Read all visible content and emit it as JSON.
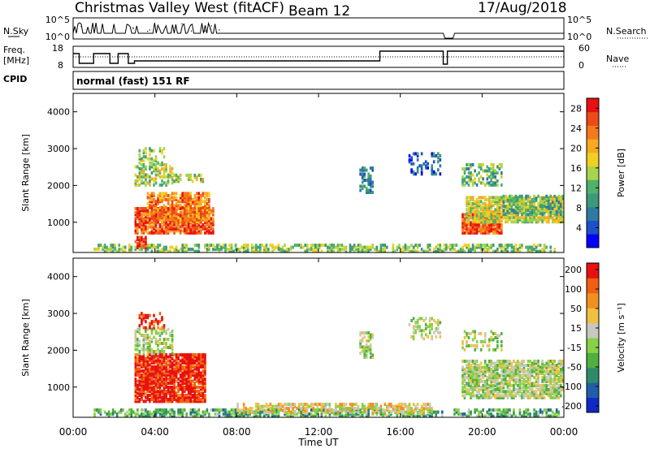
{
  "header": {
    "station_title": "Christmas Valley West (fitACF)",
    "beam_label": "Beam 12",
    "date": "17/Aug/2018",
    "nsky_label": "N.Sky",
    "nsearch_label": "N.Search",
    "freq_label_1": "Freq.",
    "freq_label_2": "[MHz]",
    "nave_label": "Nave",
    "cpid_label": "CPID",
    "cpid_value": "normal (fast) 151 RF",
    "nsky_ticks": [
      "10^5",
      "10^0"
    ],
    "nsearch_ticks": [
      "10^5",
      "10^0"
    ],
    "freq_ticks": [
      "18",
      "8"
    ],
    "nave_ticks": [
      "60",
      "0"
    ]
  },
  "chart_data": [
    {
      "type": "heatmap",
      "name": "power",
      "xlabel": "",
      "ylabel": "Slant Range [km]",
      "xlim": [
        "00:00",
        "00:00"
      ],
      "ylim": [
        180,
        4500
      ],
      "y_ticks": [
        1000,
        2000,
        3000,
        4000
      ],
      "colorbar": {
        "label": "Power [dB]",
        "ticks": [
          4,
          8,
          12,
          16,
          20,
          24,
          28
        ],
        "colors": [
          "#0000ff",
          "#1e4fc8",
          "#2f7aa0",
          "#3c9a7a",
          "#4fb16a",
          "#a8d34a",
          "#f0d020",
          "#f9a820",
          "#f47a1c",
          "#ee4a18",
          "#e81010"
        ]
      },
      "patches": [
        {
          "t0": 1.0,
          "t1": 23.6,
          "r0": 200,
          "r1": 420,
          "level": 0.45,
          "density": 0.55
        },
        {
          "t0": 3.0,
          "t1": 6.8,
          "r0": 700,
          "r1": 1400,
          "level": 0.85,
          "density": 0.8
        },
        {
          "t0": 3.6,
          "t1": 6.6,
          "r0": 1000,
          "r1": 1800,
          "level": 0.75,
          "density": 0.7
        },
        {
          "t0": 3.0,
          "t1": 4.8,
          "r0": 2000,
          "r1": 2600,
          "level": 0.5,
          "density": 0.5
        },
        {
          "t0": 4.8,
          "t1": 6.4,
          "r0": 2100,
          "r1": 2300,
          "level": 0.5,
          "density": 0.5
        },
        {
          "t0": 3.2,
          "t1": 4.4,
          "r0": 2600,
          "r1": 3000,
          "level": 0.45,
          "density": 0.35
        },
        {
          "t0": 3.0,
          "t1": 3.6,
          "r0": 300,
          "r1": 600,
          "level": 0.9,
          "density": 0.8
        },
        {
          "t0": 14.0,
          "t1": 14.6,
          "r0": 1800,
          "r1": 2500,
          "level": 0.25,
          "density": 0.4
        },
        {
          "t0": 16.4,
          "t1": 18.0,
          "r0": 2300,
          "r1": 2900,
          "level": 0.2,
          "density": 0.3
        },
        {
          "t0": 19.0,
          "t1": 21.0,
          "r0": 700,
          "r1": 1200,
          "level": 0.85,
          "density": 0.85
        },
        {
          "t0": 19.2,
          "t1": 24.0,
          "r0": 1000,
          "r1": 1700,
          "level": 0.55,
          "density": 0.75
        },
        {
          "t0": 21.0,
          "t1": 24.0,
          "r0": 1200,
          "r1": 1700,
          "level": 0.4,
          "density": 0.6
        },
        {
          "t0": 19.0,
          "t1": 21.0,
          "r0": 2000,
          "r1": 2600,
          "level": 0.4,
          "density": 0.4
        }
      ]
    },
    {
      "type": "heatmap",
      "name": "velocity",
      "xlabel": "Time UT",
      "ylabel": "Slant Range [km]",
      "xlim": [
        "00:00",
        "00:00"
      ],
      "ylim": [
        180,
        4500
      ],
      "y_ticks": [
        1000,
        2000,
        3000,
        4000
      ],
      "x_ticks": [
        "00:00",
        "04:00",
        "08:00",
        "12:00",
        "16:00",
        "20:00",
        "00:00"
      ],
      "colorbar": {
        "label": "Velocity [m s⁻¹]",
        "ticks": [
          "200",
          "100",
          "50",
          "15",
          "-15",
          "-50",
          "-100",
          "-200"
        ],
        "colors": [
          "#1028c8",
          "#205fa8",
          "#2f8a6a",
          "#4fb040",
          "#88d048",
          "#c8c8c0",
          "#f0c040",
          "#f09020",
          "#f06010",
          "#e81010"
        ]
      },
      "patches": [
        {
          "t0": 1.0,
          "t1": 18.0,
          "r0": 200,
          "r1": 420,
          "level": 0.35,
          "density": 0.55
        },
        {
          "t0": 8.0,
          "t1": 17.5,
          "r0": 300,
          "r1": 550,
          "level": 0.6,
          "density": 0.6
        },
        {
          "t0": 18.6,
          "t1": 23.8,
          "r0": 200,
          "r1": 420,
          "level": 0.35,
          "density": 0.5
        },
        {
          "t0": 3.0,
          "t1": 6.4,
          "r0": 600,
          "r1": 1900,
          "level": 0.95,
          "density": 0.85
        },
        {
          "t0": 3.0,
          "t1": 4.8,
          "r0": 1900,
          "r1": 2600,
          "level": 0.5,
          "density": 0.5
        },
        {
          "t0": 3.2,
          "t1": 4.4,
          "r0": 2600,
          "r1": 3000,
          "level": 0.9,
          "density": 0.4
        },
        {
          "t0": 14.0,
          "t1": 14.6,
          "r0": 1800,
          "r1": 2500,
          "level": 0.5,
          "density": 0.4
        },
        {
          "t0": 16.4,
          "t1": 18.0,
          "r0": 2300,
          "r1": 2900,
          "level": 0.5,
          "density": 0.3
        },
        {
          "t0": 19.0,
          "t1": 24.0,
          "r0": 700,
          "r1": 1700,
          "level": 0.5,
          "density": 0.75
        },
        {
          "t0": 19.0,
          "t1": 21.0,
          "r0": 2000,
          "r1": 2500,
          "level": 0.5,
          "density": 0.35
        }
      ]
    }
  ]
}
